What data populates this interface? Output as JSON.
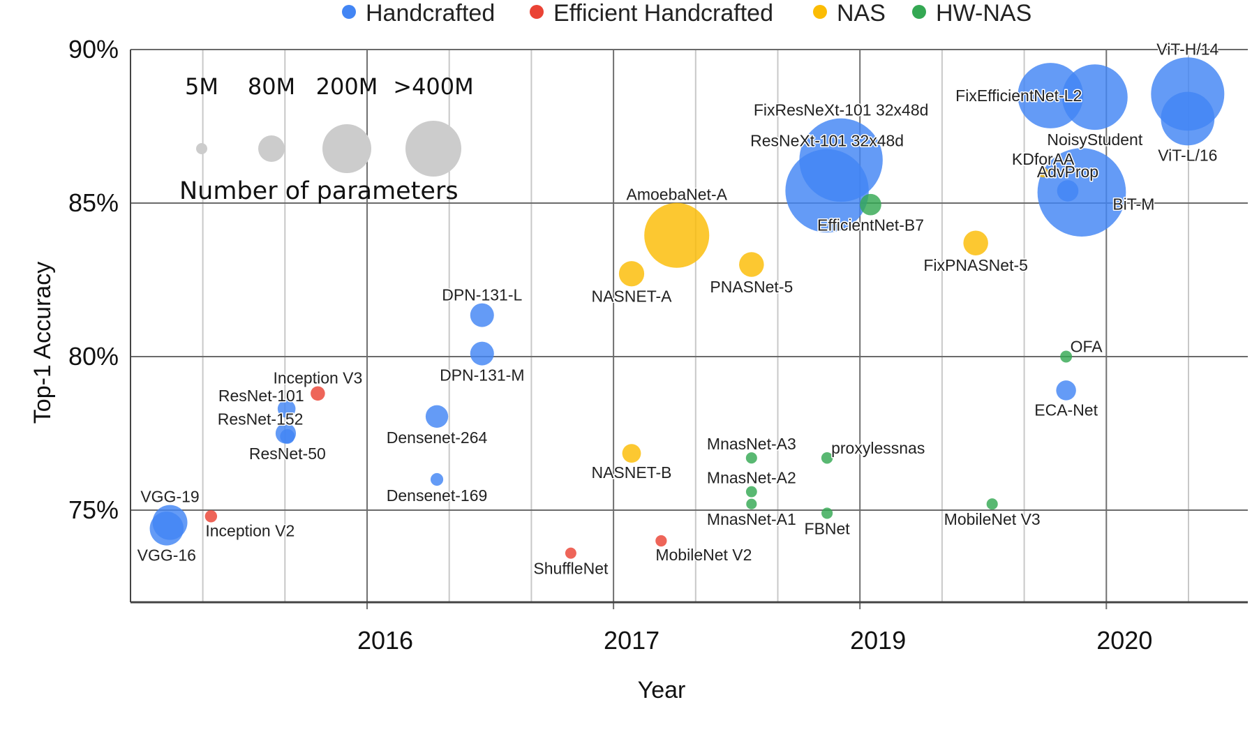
{
  "chart_data": {
    "type": "scatter",
    "subtype": "bubble",
    "title": "",
    "xlabel": "Year",
    "ylabel": "Top-1 Accuracy",
    "x_ticks": [
      {
        "t": 0,
        "label": "2016"
      },
      {
        "t": 3,
        "label": "2017"
      },
      {
        "t": 6,
        "label": "2019"
      },
      {
        "t": 9,
        "label": "2020"
      }
    ],
    "x_minor_gridlines_t": [
      -2,
      -1,
      1,
      2,
      4,
      5,
      7,
      8,
      10
    ],
    "x_range_t": [
      -2.9,
      10.7
    ],
    "x_note": "x is an ordinal time index (t); ticks 2016,2017,2019,2020 are evenly spaced 3 units apart",
    "y_ticks": [
      {
        "value": 75,
        "label": "75%"
      },
      {
        "value": 80,
        "label": "80%"
      },
      {
        "value": 85,
        "label": "85%"
      },
      {
        "value": 90,
        "label": "90%"
      }
    ],
    "ylim": [
      72,
      90
    ],
    "grid": true,
    "legend_position": "top-center",
    "categories": [
      {
        "name": "Handcrafted",
        "color": "#4285F4"
      },
      {
        "name": "Efficient Handcrafted",
        "color": "#EA4335"
      },
      {
        "name": "NAS",
        "color": "#FBBC04"
      },
      {
        "name": "HW-NAS",
        "color": "#34A853"
      }
    ],
    "size_legend": {
      "title": "Number of parameters",
      "entries": [
        {
          "label": "5M",
          "params_m": 5
        },
        {
          "label": "80M",
          "params_m": 80
        },
        {
          "label": "200M",
          "params_m": 200
        },
        {
          "label": ">400M",
          "params_m": 400
        }
      ],
      "color": "#cccccc"
    },
    "points": [
      {
        "name": "VGG-16",
        "category": "Handcrafted",
        "t": -2.44,
        "acc": 74.4,
        "params_m": 138,
        "label_pos": "below"
      },
      {
        "name": "VGG-19",
        "category": "Handcrafted",
        "t": -2.4,
        "acc": 74.6,
        "params_m": 144,
        "label_pos": "above"
      },
      {
        "name": "Inception V2",
        "category": "Efficient Handcrafted",
        "t": -1.9,
        "acc": 74.8,
        "params_m": 11,
        "label_pos": "below-right"
      },
      {
        "name": "Inception V3",
        "category": "Efficient Handcrafted",
        "t": -0.6,
        "acc": 78.8,
        "params_m": 24,
        "label_pos": "above"
      },
      {
        "name": "ResNet-101",
        "category": "Handcrafted",
        "t": -0.98,
        "acc": 78.3,
        "params_m": 45,
        "label_pos": "above-left"
      },
      {
        "name": "ResNet-152",
        "category": "Handcrafted",
        "t": -0.99,
        "acc": 77.5,
        "params_m": 60,
        "label_pos": "above-left"
      },
      {
        "name": "ResNet-50",
        "category": "Handcrafted",
        "t": -0.97,
        "acc": 77.4,
        "params_m": 26,
        "label_pos": "below"
      },
      {
        "name": "Densenet-264",
        "category": "Handcrafted",
        "t": 0.85,
        "acc": 78.05,
        "params_m": 73,
        "label_pos": "below"
      },
      {
        "name": "Densenet-169",
        "category": "Handcrafted",
        "t": 0.85,
        "acc": 76.0,
        "params_m": 14,
        "label_pos": "below"
      },
      {
        "name": "DPN-131-L",
        "category": "Handcrafted",
        "t": 1.4,
        "acc": 81.35,
        "params_m": 80,
        "label_pos": "above"
      },
      {
        "name": "DPN-131-M",
        "category": "Handcrafted",
        "t": 1.4,
        "acc": 80.1,
        "params_m": 80,
        "label_pos": "below"
      },
      {
        "name": "ShuffleNet",
        "category": "Efficient Handcrafted",
        "t": 2.48,
        "acc": 73.6,
        "params_m": 5,
        "label_pos": "below"
      },
      {
        "name": "MobileNet V2",
        "category": "Efficient Handcrafted",
        "t": 3.58,
        "acc": 74.0,
        "params_m": 6,
        "label_pos": "below-right"
      },
      {
        "name": "NASNET-A",
        "category": "NAS",
        "t": 3.22,
        "acc": 82.7,
        "params_m": 89,
        "label_pos": "below"
      },
      {
        "name": "NASNET-B",
        "category": "NAS",
        "t": 3.22,
        "acc": 76.85,
        "params_m": 50,
        "label_pos": "below"
      },
      {
        "name": "AmoebaNet-A",
        "category": "NAS",
        "t": 3.77,
        "acc": 83.95,
        "params_m": 469,
        "label_pos": "above"
      },
      {
        "name": "PNASNet-5",
        "category": "NAS",
        "t": 4.68,
        "acc": 83.0,
        "params_m": 86,
        "label_pos": "below"
      },
      {
        "name": "MnasNet-A3",
        "category": "HW-NAS",
        "t": 4.68,
        "acc": 76.7,
        "params_m": 5.2,
        "label_pos": "above"
      },
      {
        "name": "MnasNet-A2",
        "category": "HW-NAS",
        "t": 4.68,
        "acc": 75.6,
        "params_m": 4.8,
        "label_pos": "above"
      },
      {
        "name": "MnasNet-A1",
        "category": "HW-NAS",
        "t": 4.68,
        "acc": 75.2,
        "params_m": 3.9,
        "label_pos": "below"
      },
      {
        "name": "proxylessnas",
        "category": "HW-NAS",
        "t": 5.6,
        "acc": 76.7,
        "params_m": 7.1,
        "label_pos": "above-right"
      },
      {
        "name": "FBNet",
        "category": "HW-NAS",
        "t": 5.6,
        "acc": 74.9,
        "params_m": 5.5,
        "label_pos": "below"
      },
      {
        "name": "ResNeXt-101 32x48d",
        "category": "Handcrafted",
        "t": 5.6,
        "acc": 85.4,
        "params_m": 829,
        "label_pos": "above"
      },
      {
        "name": "FixResNeXt-101 32x48d",
        "category": "Handcrafted",
        "t": 5.77,
        "acc": 86.4,
        "params_m": 829,
        "label_pos": "above"
      },
      {
        "name": "EfficientNet-B7",
        "category": "HW-NAS",
        "t": 6.13,
        "acc": 84.95,
        "params_m": 66,
        "label_pos": "below"
      },
      {
        "name": "FixPNASNet-5",
        "category": "NAS",
        "t": 7.41,
        "acc": 83.7,
        "params_m": 86,
        "label_pos": "below"
      },
      {
        "name": "MobileNet V3",
        "category": "HW-NAS",
        "t": 7.61,
        "acc": 75.2,
        "params_m": 5.4,
        "label_pos": "below"
      },
      {
        "name": "KDforAA",
        "category": "NAS",
        "t": 8.23,
        "acc": 86.0,
        "params_m": 3,
        "label_pos": "above"
      },
      {
        "name": "AdvProp",
        "category": "Handcrafted",
        "t": 8.53,
        "acc": 85.4,
        "params_m": 66,
        "label_pos": "above"
      },
      {
        "name": "BiT-M",
        "category": "Handcrafted",
        "t": 8.7,
        "acc": 85.35,
        "params_m": 928,
        "label_pos": "right"
      },
      {
        "name": "FixEfficientNet-L2",
        "category": "Handcrafted",
        "t": 8.32,
        "acc": 88.5,
        "params_m": 480,
        "label_pos": "left"
      },
      {
        "name": "NoisyStudent",
        "category": "Handcrafted",
        "t": 8.86,
        "acc": 88.45,
        "params_m": 480,
        "label_pos": "below"
      },
      {
        "name": "OFA",
        "category": "HW-NAS",
        "t": 8.51,
        "acc": 80.0,
        "params_m": 9.1,
        "label_pos": "above-right"
      },
      {
        "name": "ECA-Net",
        "category": "Handcrafted",
        "t": 8.51,
        "acc": 78.9,
        "params_m": 57,
        "label_pos": "below"
      },
      {
        "name": "ViT-H/14",
        "category": "Handcrafted",
        "t": 9.99,
        "acc": 88.55,
        "params_m": 632,
        "label_pos": "above"
      },
      {
        "name": "ViT-L/16",
        "category": "Handcrafted",
        "t": 9.99,
        "acc": 87.75,
        "params_m": 307,
        "label_pos": "below"
      }
    ]
  }
}
